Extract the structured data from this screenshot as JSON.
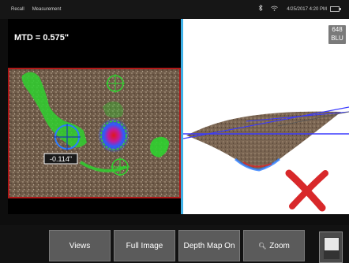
{
  "status_bar": {
    "breadcrumb_1": "Recall",
    "breadcrumb_2": "Measurement",
    "datetime": "4/25/2017  4:20 PM"
  },
  "left_panel": {
    "mtd_label": "MTD = 0.575\"",
    "depth_value_label": "-0.114\""
  },
  "right_panel": {
    "tag_line_1": "648",
    "tag_line_2": "BLU"
  },
  "toolbar": {
    "views_label": "Views",
    "full_image_label": "Full Image",
    "depth_map_label": "Depth Map On",
    "zoom_label": "Zoom"
  },
  "colors": {
    "divider": "#3fb0e6",
    "overlay_green": "#2fd12f",
    "cursor_blue": "#2b7cff",
    "invalid_red": "#d8282a",
    "frame_red": "#b01818"
  },
  "icons": [
    "bluetooth-icon",
    "wifi-icon",
    "battery-icon",
    "zoom-icon",
    "invalid-x-icon"
  ]
}
